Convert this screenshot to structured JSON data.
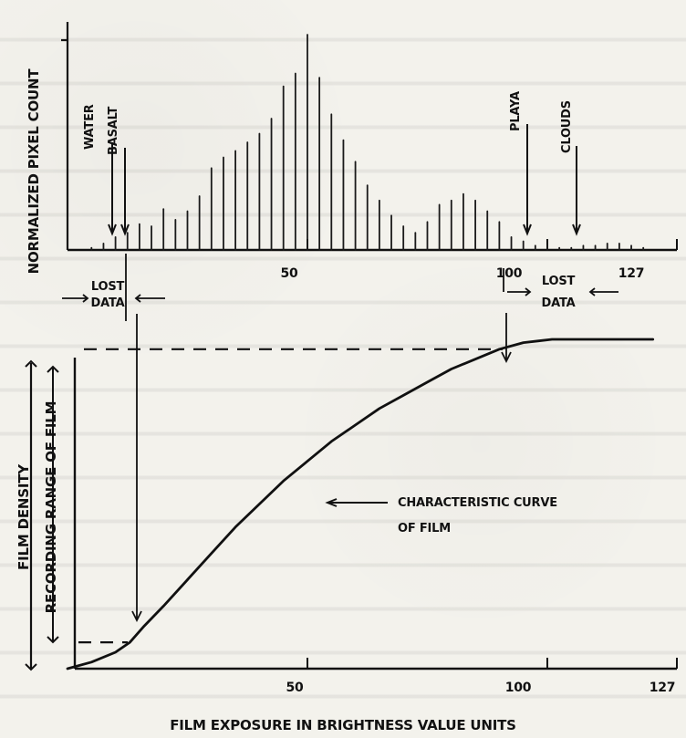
{
  "chart_data": [
    {
      "type": "bar",
      "ylabel": "NORMALIZED PIXEL COUNT",
      "x_ticks": [
        "50",
        "100",
        "127"
      ],
      "xlim": [
        0,
        127
      ],
      "x": [
        5,
        7.5,
        10,
        12.5,
        15,
        17.5,
        20,
        22.5,
        25,
        27.5,
        30,
        32.5,
        35,
        37.5,
        40,
        42.5,
        45,
        47.5,
        50,
        52.5,
        55,
        57.5,
        60,
        62.5,
        65,
        67.5,
        70,
        72.5,
        75,
        77.5,
        80,
        82.5,
        85,
        87.5,
        90,
        92.5,
        95,
        97.5,
        100,
        102.5,
        105,
        107.5,
        110,
        112.5,
        115,
        117.5,
        120
      ],
      "values": [
        0.01,
        0.03,
        0.06,
        0.08,
        0.12,
        0.11,
        0.19,
        0.14,
        0.18,
        0.25,
        0.38,
        0.43,
        0.46,
        0.5,
        0.54,
        0.61,
        0.76,
        0.82,
        1.0,
        0.8,
        0.63,
        0.51,
        0.41,
        0.3,
        0.23,
        0.16,
        0.11,
        0.08,
        0.13,
        0.21,
        0.23,
        0.26,
        0.23,
        0.18,
        0.13,
        0.06,
        0.04,
        0.02,
        0.02,
        0.01,
        0.01,
        0.02,
        0.02,
        0.03,
        0.03,
        0.02,
        0.01
      ],
      "annotations": [
        {
          "text": "WATER",
          "x": 10
        },
        {
          "text": "BASALT",
          "x": 13
        },
        {
          "text": "PLAYA",
          "x": 103
        },
        {
          "text": "CLOUDS",
          "x": 116
        }
      ],
      "lost_data_left": {
        "text_line1": "LOST",
        "text_line2": "DATA",
        "range": [
          0,
          13
        ]
      },
      "lost_data_right": {
        "text_line1": "LOST",
        "text_line2": "DATA",
        "range": [
          98,
          127
        ]
      }
    },
    {
      "type": "line",
      "series": [
        {
          "name": "CHARACTERISTIC CURVE OF FILM",
          "x": [
            0,
            5,
            10,
            13,
            16,
            20,
            25,
            30,
            35,
            40,
            45,
            50,
            55,
            60,
            65,
            70,
            75,
            80,
            85,
            90,
            95,
            98,
            101,
            104,
            107,
            110,
            113,
            117,
            122
          ],
          "y": [
            0.0,
            0.02,
            0.05,
            0.08,
            0.13,
            0.19,
            0.27,
            0.35,
            0.43,
            0.5,
            0.57,
            0.63,
            0.69,
            0.74,
            0.79,
            0.83,
            0.87,
            0.91,
            0.94,
            0.97,
            0.99,
            0.995,
            1.0,
            1.0,
            1.0,
            1.0,
            1.0,
            1.0,
            1.0
          ]
        }
      ],
      "xlabel": "FILM EXPOSURE IN BRIGHTNESS VALUE UNITS",
      "ylabel": "FILM DENSITY",
      "secondary_ylabel": "RECORDING RANGE OF FILM",
      "x_ticks": [
        "50",
        "100",
        "127"
      ],
      "xlim": [
        0,
        127
      ],
      "ylim": [
        0,
        1
      ],
      "dashed_levels": [
        0.08,
        0.97
      ],
      "curve_label_line1": "CHARACTERISTIC CURVE",
      "curve_label_line2": "OF FILM"
    }
  ]
}
